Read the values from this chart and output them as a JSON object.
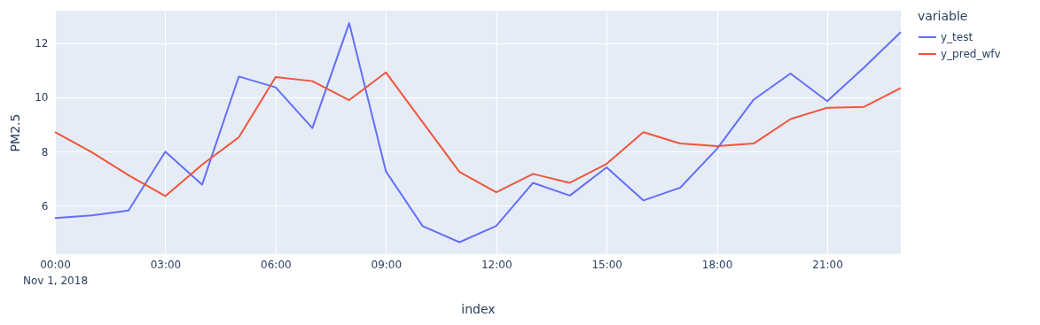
{
  "chart_data": {
    "type": "line",
    "xlabel": "index",
    "ylabel": "PM2.5",
    "legend_title": "variable",
    "x": [
      "2018-11-01T00:00",
      "2018-11-01T01:00",
      "2018-11-01T02:00",
      "2018-11-01T03:00",
      "2018-11-01T04:00",
      "2018-11-01T05:00",
      "2018-11-01T06:00",
      "2018-11-01T07:00",
      "2018-11-01T08:00",
      "2018-11-01T09:00",
      "2018-11-01T10:00",
      "2018-11-01T11:00",
      "2018-11-01T12:00",
      "2018-11-01T13:00",
      "2018-11-01T14:00",
      "2018-11-01T15:00",
      "2018-11-01T16:00",
      "2018-11-01T17:00",
      "2018-11-01T18:00",
      "2018-11-01T19:00",
      "2018-11-01T20:00",
      "2018-11-01T21:00",
      "2018-11-01T22:00",
      "2018-11-01T23:00"
    ],
    "series": [
      {
        "name": "y_test",
        "color": "#636efa",
        "values": [
          5.55,
          5.65,
          5.83,
          8.0,
          6.78,
          10.77,
          10.37,
          8.87,
          12.74,
          7.27,
          5.25,
          4.66,
          5.26,
          6.85,
          6.38,
          7.42,
          6.2,
          6.67,
          8.1,
          9.92,
          10.88,
          9.86,
          11.1,
          12.41
        ]
      },
      {
        "name": "y_pred_wfv",
        "color": "#ef553b",
        "values": [
          8.72,
          7.98,
          7.13,
          6.36,
          7.52,
          8.53,
          10.75,
          10.6,
          9.9,
          10.92,
          9.08,
          7.25,
          6.5,
          7.18,
          6.85,
          7.55,
          8.72,
          8.3,
          8.2,
          8.3,
          9.2,
          9.62,
          9.65,
          10.35
        ]
      }
    ],
    "xlim": [
      "2018-11-01T00:00",
      "2018-11-01T23:00"
    ],
    "xticks": [
      {
        "value": "2018-11-01T00:00",
        "label": "00:00\nNov 1, 2018"
      },
      {
        "value": "2018-11-01T03:00",
        "label": "03:00"
      },
      {
        "value": "2018-11-01T06:00",
        "label": "06:00"
      },
      {
        "value": "2018-11-01T09:00",
        "label": "09:00"
      },
      {
        "value": "2018-11-01T12:00",
        "label": "12:00"
      },
      {
        "value": "2018-11-01T15:00",
        "label": "15:00"
      },
      {
        "value": "2018-11-01T18:00",
        "label": "18:00"
      },
      {
        "value": "2018-11-01T21:00",
        "label": "21:00"
      }
    ],
    "ylim": [
      4.22,
      13.2
    ],
    "yticks": [
      6,
      8,
      10,
      12
    ],
    "grid": true,
    "legend": "top right",
    "marker": "none",
    "line_style": "solid"
  }
}
